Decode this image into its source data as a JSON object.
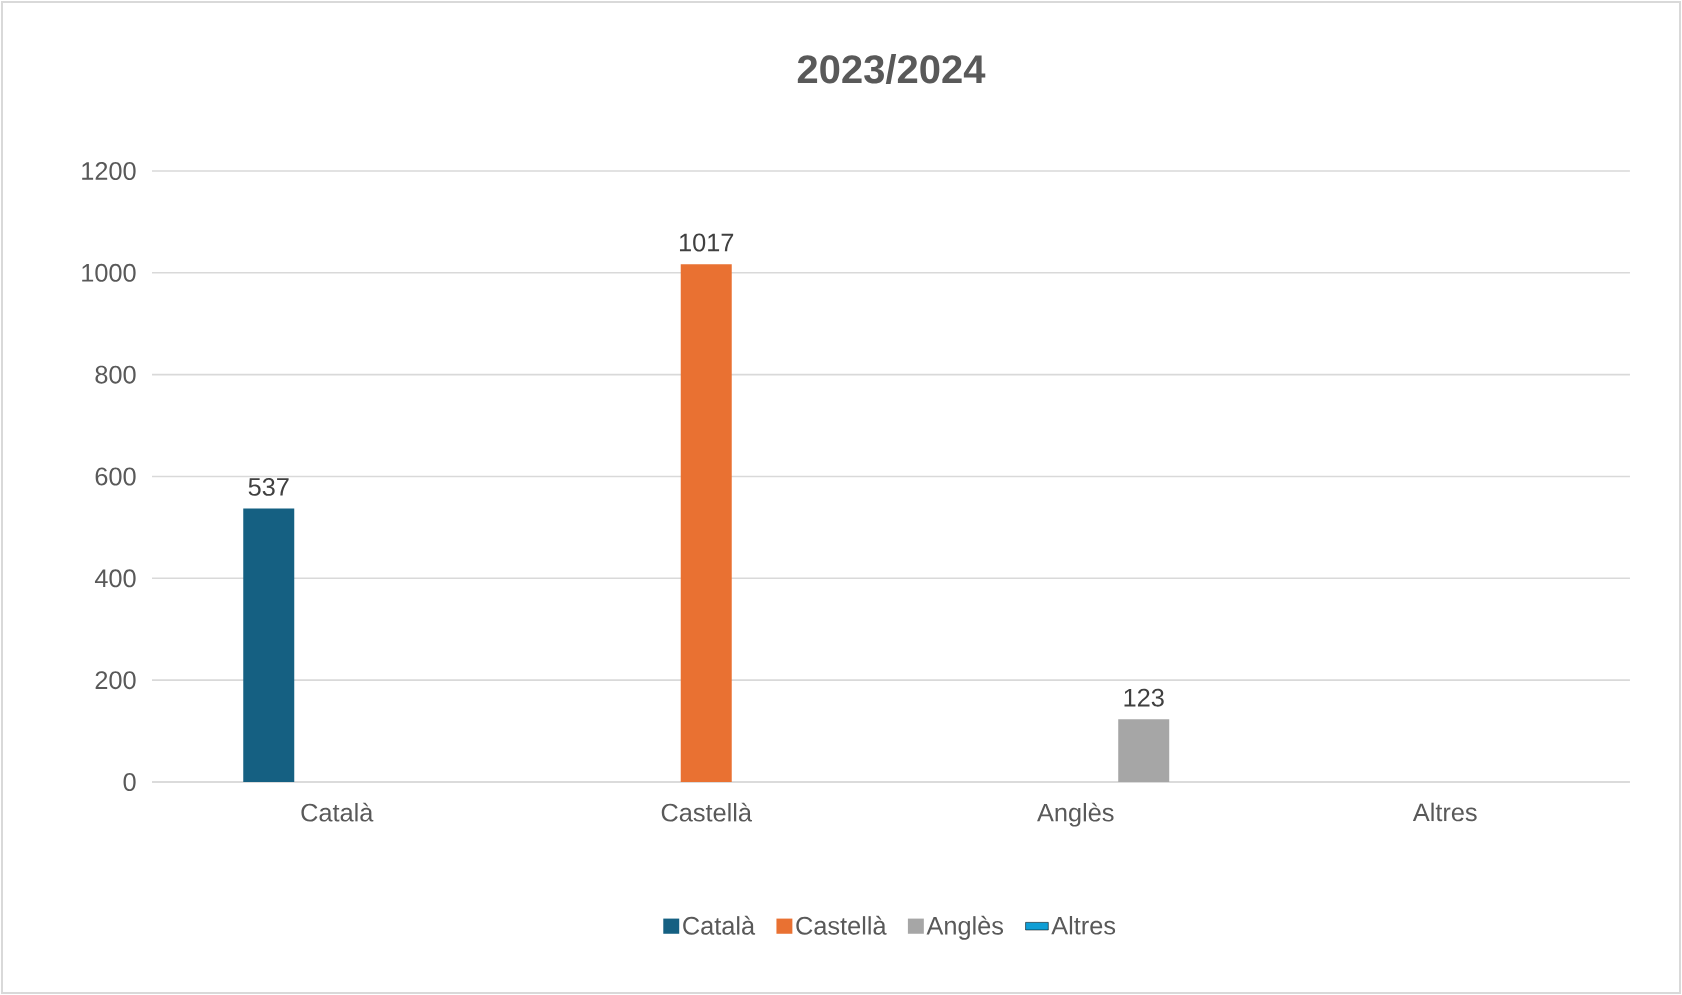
{
  "chart_data": {
    "type": "bar",
    "title": "2023/2024",
    "categories": [
      "Català",
      "Castellà",
      "Anglès",
      "Altres"
    ],
    "series": [
      {
        "name": "Català",
        "color": "#156082",
        "values": [
          537,
          null,
          null,
          null
        ]
      },
      {
        "name": "Castellà",
        "color": "#e97132",
        "values": [
          null,
          1017,
          null,
          null
        ]
      },
      {
        "name": "Anglès",
        "color": "#a6a6a6",
        "values": [
          null,
          null,
          123,
          null
        ]
      },
      {
        "name": "Altres",
        "color": "#0f9ed5",
        "values": [
          null,
          null,
          null,
          null
        ]
      }
    ],
    "ylim": [
      0,
      1200
    ],
    "yticks": [
      0,
      200,
      400,
      600,
      800,
      1000,
      1200
    ],
    "grid": "y",
    "legend": "bottom",
    "data_labels": true
  }
}
